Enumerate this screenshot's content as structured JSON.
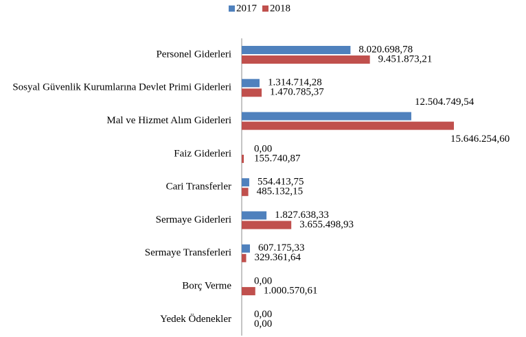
{
  "chart_data": {
    "type": "bar",
    "orientation": "horizontal",
    "categories": [
      "Personel Giderleri",
      "Sosyal Güvenlik Kurumlarına Devlet Primi Giderleri",
      "Mal ve Hizmet Alım Giderleri",
      "Faiz Giderleri",
      "Cari Transferler",
      "Sermaye Giderleri",
      "Sermaye Transferleri",
      "Borç Verme",
      "Yedek Ödenekler"
    ],
    "series": [
      {
        "name": "2017",
        "color": "#4f81bd",
        "values": [
          8020698.78,
          1314714.28,
          12504749.54,
          0,
          554413.75,
          1827638.33,
          607175.33,
          0,
          0
        ],
        "value_labels": [
          "8.020.698,78",
          "1.314.714,28",
          "12.504.749,54",
          "0,00",
          "554.413,75",
          "1.827.638,33",
          "607.175,33",
          "0,00",
          "0,00"
        ]
      },
      {
        "name": "2018",
        "color": "#c0504d",
        "values": [
          9451873.21,
          1470785.37,
          15646254.6,
          155740.87,
          485132.15,
          3655498.93,
          329361.64,
          1000570.61,
          0
        ],
        "value_labels": [
          "9.451.873,21",
          "1.470.785,37",
          "15.646.254,60",
          "155.740,87",
          "485.132,15",
          "3.655.498,93",
          "329.361,64",
          "1.000.570,61",
          "0,00"
        ]
      }
    ],
    "legend": "top"
  }
}
